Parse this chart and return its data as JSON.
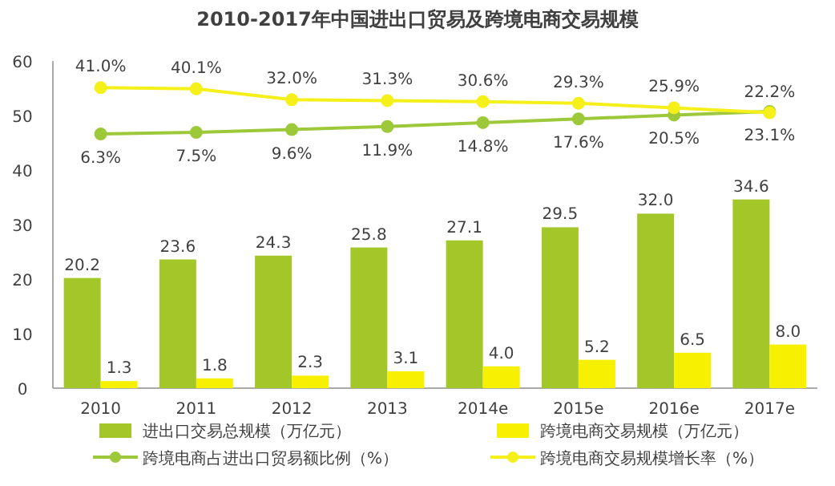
{
  "chart_data": {
    "type": "bar",
    "title": "2010-2017年中国进出口贸易及跨境电商交易规模",
    "categories": [
      "2010",
      "2011",
      "2012",
      "2013",
      "2014e",
      "2015e",
      "2016e",
      "2017e"
    ],
    "series": [
      {
        "name": "进出口交易总规模（万亿元）",
        "color": "#a3c629",
        "values": [
          20.2,
          23.6,
          24.3,
          25.8,
          27.1,
          29.5,
          32.0,
          34.6
        ],
        "value_labels": [
          "20.2",
          "23.6",
          "24.3",
          "25.8",
          "27.1",
          "29.5",
          "32.0",
          "34.6"
        ]
      },
      {
        "name": "跨境电商交易规模（万亿元）",
        "color": "#f7f000",
        "values": [
          1.3,
          1.8,
          2.3,
          3.1,
          4.0,
          5.2,
          6.5,
          8.0
        ],
        "value_labels": [
          "1.3",
          "1.8",
          "2.3",
          "3.1",
          "4.0",
          "5.2",
          "6.5",
          "8.0"
        ]
      },
      {
        "name": "跨境电商占进出口贸易额比例（%）",
        "type": "line",
        "axis": "y2",
        "color": "#9cc83a",
        "values": [
          6.3,
          7.5,
          9.6,
          11.9,
          14.8,
          17.6,
          20.5,
          23.1
        ],
        "value_labels": [
          "6.3%",
          "7.5%",
          "9.6%",
          "11.9%",
          "14.8%",
          "17.6%",
          "20.5%",
          "23.1%"
        ]
      },
      {
        "name": "跨境电商交易规模增长率（%）",
        "type": "line",
        "axis": "y2",
        "color": "#f5ef1a",
        "values": [
          41.0,
          40.1,
          32.0,
          31.3,
          30.6,
          29.3,
          25.9,
          22.2
        ],
        "value_labels": [
          "41.0%",
          "40.1%",
          "32.0%",
          "31.3%",
          "30.6%",
          "29.3%",
          "25.9%",
          "22.2%"
        ]
      }
    ],
    "ylim": [
      0,
      60
    ],
    "yticks": [
      0,
      10,
      20,
      30,
      40,
      50,
      60
    ],
    "y2lim": [
      -184,
      61
    ],
    "tick_labels": "xy",
    "grid": false,
    "legend": "bottom",
    "marker": "circle",
    "line_style": "solid"
  }
}
